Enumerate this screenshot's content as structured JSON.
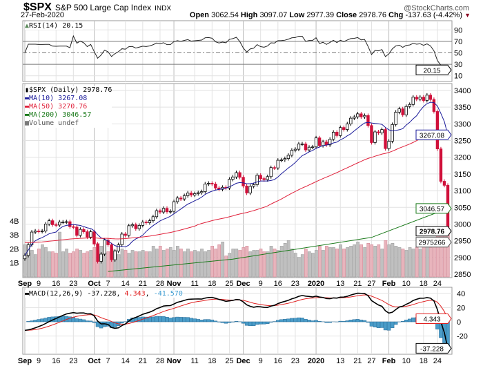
{
  "header": {
    "symbol": "$SPX",
    "name": "S&P 500 Large Cap Index",
    "exchange": "INDX",
    "brand": "@StockCharts.com",
    "date": "27-Feb-2020",
    "open_label": "Open",
    "open": "3062.54",
    "high_label": "High",
    "high": "3097.07",
    "low_label": "Low",
    "low": "2977.39",
    "close_label": "Close",
    "close": "2978.76",
    "chg_label": "Chg",
    "chg": "-137.63 (-4.42%)"
  },
  "colors": {
    "up": "#ffffff",
    "down": "#d0103a",
    "ma10": "#1a1a9a",
    "ma50": "#e0203a",
    "ma200": "#1a7a1a",
    "vol_up": "#c0c0c0",
    "vol_down": "#e8b4bc",
    "macd_hist": "#4a9cc8",
    "rsi_fill": "#5a8a5a"
  },
  "chart_data": [
    {
      "type": "candlestick",
      "title": "$SPX (Daily) 2978.76",
      "ylim": [
        2830,
        3420
      ],
      "yticks": [
        2850,
        2900,
        2950,
        3000,
        3050,
        3100,
        3150,
        3200,
        3250,
        3300,
        3350,
        3400
      ],
      "x_labels": [
        {
          "label": "Sep",
          "i": 0,
          "bold": true
        },
        {
          "label": "9",
          "i": 4
        },
        {
          "label": "16",
          "i": 9
        },
        {
          "label": "23",
          "i": 14
        },
        {
          "label": "Oct",
          "i": 20,
          "bold": true
        },
        {
          "label": "7",
          "i": 24
        },
        {
          "label": "14",
          "i": 29
        },
        {
          "label": "21",
          "i": 34
        },
        {
          "label": "28",
          "i": 39
        },
        {
          "label": "Nov",
          "i": 43,
          "bold": true
        },
        {
          "label": "11",
          "i": 49
        },
        {
          "label": "18",
          "i": 54
        },
        {
          "label": "25",
          "i": 59
        },
        {
          "label": "Dec",
          "i": 63,
          "bold": true
        },
        {
          "label": "9",
          "i": 68
        },
        {
          "label": "16",
          "i": 73
        },
        {
          "label": "23",
          "i": 78
        },
        {
          "label": "2020",
          "i": 84,
          "bold": true
        },
        {
          "label": "13",
          "i": 91
        },
        {
          "label": "21",
          "i": 96
        },
        {
          "label": "27",
          "i": 100
        },
        {
          "label": "Feb",
          "i": 105,
          "bold": true
        },
        {
          "label": "10",
          "i": 110
        },
        {
          "label": "18",
          "i": 115
        },
        {
          "label": "24",
          "i": 119
        }
      ],
      "close": [
        2906,
        2938,
        2976,
        2979,
        2978,
        2979,
        3000,
        3010,
        2998,
        2997,
        3006,
        3006,
        3007,
        2992,
        2991,
        2966,
        2984,
        2977,
        2961,
        2977,
        2940,
        2888,
        2910,
        2952,
        2938,
        2893,
        2919,
        2938,
        2970,
        2966,
        2995,
        2998,
        2986,
        2996,
        3006,
        3004,
        3010,
        3022,
        3040,
        3036,
        3047,
        3037,
        3038,
        3067,
        3078,
        3075,
        3085,
        3093,
        3087,
        3091,
        3094,
        3097,
        3120,
        3122,
        3120,
        3108,
        3104,
        3110,
        3108,
        3134,
        3141,
        3154,
        3140,
        3114,
        3093,
        3113,
        3118,
        3146,
        3136,
        3133,
        3142,
        3169,
        3168,
        3191,
        3192,
        3196,
        3206,
        3221,
        3224,
        3240,
        3240,
        3222,
        3230,
        3231,
        3258,
        3235,
        3246,
        3237,
        3254,
        3275,
        3265,
        3289,
        3283,
        3300,
        3317,
        3321,
        3330,
        3321,
        3325,
        3295,
        3244,
        3276,
        3273,
        3283,
        3226,
        3248,
        3298,
        3335,
        3345,
        3327,
        3352,
        3358,
        3380,
        3374,
        3380,
        3370,
        3386,
        3373,
        3337,
        3225,
        3128,
        3116,
        2978.76
      ],
      "volume_billions": [
        2.3,
        1.7,
        1.9,
        1.6,
        2.0,
        2.3,
        2.1,
        1.8,
        1.8,
        1.7,
        3.2,
        1.8,
        2.0,
        1.7,
        1.8,
        2.0,
        1.9,
        1.7,
        1.8,
        1.9,
        2.1,
        2.4,
        2.2,
        1.7,
        1.8,
        2.0,
        1.9,
        1.6,
        2.0,
        1.9,
        1.7,
        1.9,
        1.8,
        1.8,
        1.9,
        1.8,
        1.8,
        2.2,
        2.0,
        2.2,
        1.9,
        2.0,
        2.1,
        1.9,
        2.2,
        2.0,
        1.8,
        2.0,
        1.8,
        1.9,
        1.8,
        2.0,
        1.8,
        1.9,
        2.2,
        2.0,
        2.3,
        2.5,
        1.5,
        1.7,
        2.0,
        2.0,
        1.9,
        2.1,
        2.2,
        1.8,
        1.9,
        1.9,
        2.0,
        1.8,
        1.8,
        2.2,
        2.0,
        1.9,
        2.2,
        2.4,
        2.6,
        2.0,
        1.7,
        1.4,
        1.6,
        2.0,
        1.8,
        1.7,
        1.9,
        2.2,
        1.9,
        2.2,
        2.1,
        2.1,
        2.0,
        2.3,
        2.0,
        2.1,
        2.2,
        2.3,
        2.5,
        2.3,
        2.1,
        2.4,
        2.3,
        2.2,
        2.3,
        2.0,
        2.6,
        2.3,
        2.4,
        2.2,
        2.1,
        2.0,
        1.9,
        2.1,
        2.0,
        2.1,
        2.0,
        2.3,
        2.4,
        2.1,
        2.8,
        3.2,
        3.4,
        3.2,
        3.4
      ],
      "ma200": [
        {
          "i": 24,
          "v": 2858
        },
        {
          "i": 60,
          "v": 2895
        },
        {
          "i": 100,
          "v": 2960
        },
        {
          "i": 122,
          "v": 3046.57
        }
      ],
      "legend": {
        "price": "$SPX (Daily) 2978.76",
        "ma10": "MA(10) 3267.08",
        "ma50": "MA(50) 3270.76",
        "ma200": "MA(200) 3046.57",
        "volume": "Volume undef"
      },
      "tags": {
        "close": "2978.76",
        "ma10": "3267.08",
        "ma200": "3046.57",
        "volume": "2975266"
      },
      "vol_ticks": [
        "1B",
        "2B",
        "3B",
        "4B"
      ]
    },
    {
      "type": "line",
      "title": "RSI(14) 20.15",
      "value": "20.15",
      "ylim": [
        0,
        100
      ],
      "yticks": [
        10,
        30,
        50,
        70,
        90
      ]
    },
    {
      "type": "macd",
      "title": "MACD(12,26,9)",
      "macd": "-37.228",
      "signal": "4.343",
      "hist": "-41.570",
      "ylim": [
        -50,
        48
      ],
      "yticks": [
        -20,
        0,
        20,
        40
      ],
      "ytick_labels": [
        "-20",
        "0",
        "20",
        "40"
      ]
    }
  ]
}
